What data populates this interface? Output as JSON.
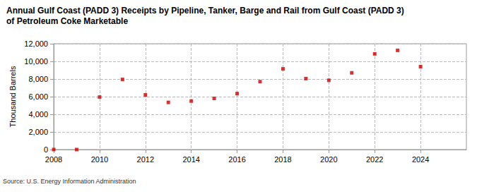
{
  "chart_data": {
    "type": "scatter",
    "title": "Annual Gulf Coast (PADD 3) Receipts by Pipeline, Tanker, Barge and Rail from Gulf Coast (PADD 3) of Petroleum Coke Marketable",
    "y_label": "Thousand Barrels",
    "annotation": "Source: U.S. Energy Information Administration",
    "x": [
      2008,
      2009,
      2010,
      2011,
      2012,
      2013,
      2014,
      2015,
      2016,
      2017,
      2018,
      2019,
      2020,
      2021,
      2022,
      2023,
      2024
    ],
    "values": [
      0,
      0,
      5950,
      7950,
      6200,
      5350,
      5500,
      5800,
      6350,
      7700,
      9150,
      8050,
      7850,
      8700,
      10850,
      11250,
      9400
    ],
    "color": "#cc0000",
    "marker": "square",
    "xlim": [
      2008,
      2026
    ],
    "xticks": [
      2008,
      2010,
      2012,
      2014,
      2016,
      2018,
      2020,
      2022,
      2024
    ],
    "ylim": [
      0,
      12000
    ],
    "yticks": [
      0,
      {
        "value": 2000,
        "label": "2,000"
      },
      {
        "value": 4000,
        "label": "4,000"
      },
      {
        "value": 6000,
        "label": "6,000"
      },
      {
        "value": 8000,
        "label": "8,000"
      },
      {
        "value": 10000,
        "label": "10,000"
      },
      {
        "value": 12000,
        "label": "12,000"
      }
    ],
    "grid": true
  }
}
